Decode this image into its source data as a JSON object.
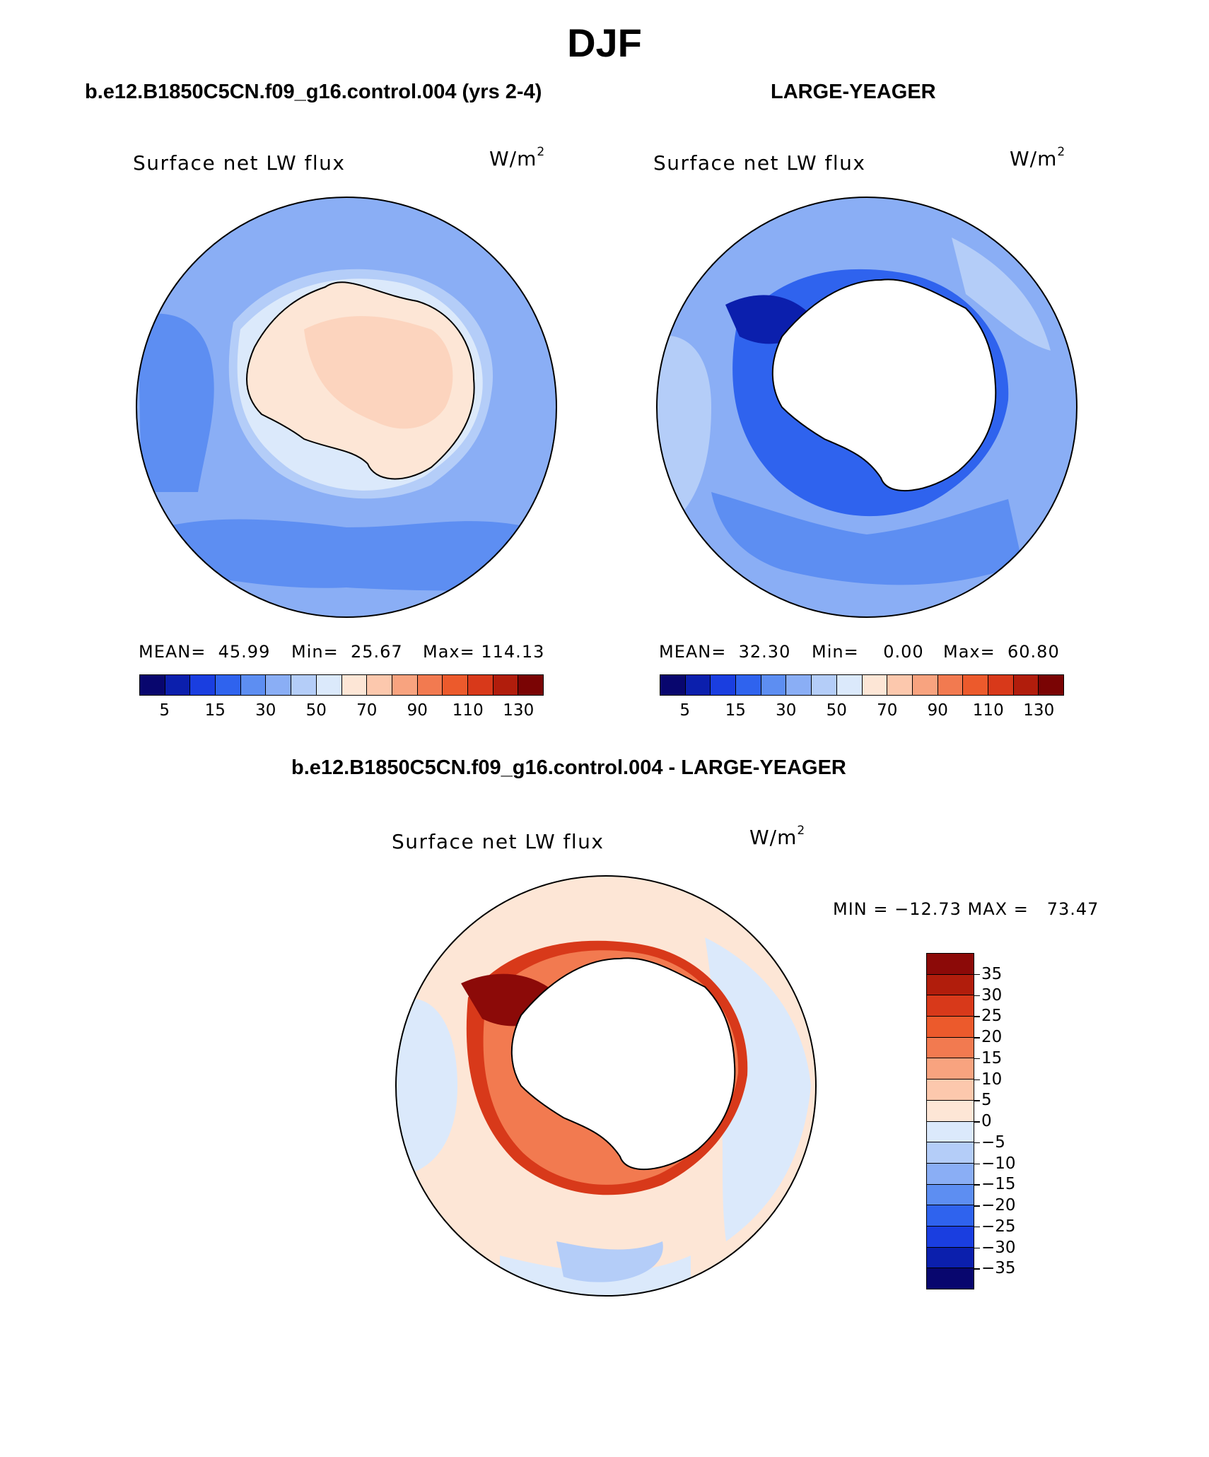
{
  "title": "DJF",
  "panels": [
    {
      "id": "control",
      "case_title": "b.e12.B1850C5CN.f09_g16.control.004 (yrs 2-4)",
      "variable": "Surface net LW flux",
      "units_base": "W/m",
      "units_exp": "2",
      "mean_label": "MEAN=",
      "mean_value": "45.99",
      "min_label": "Min=",
      "min_value": "25.67",
      "max_label": "Max=",
      "max_value": "114.13"
    },
    {
      "id": "large-yeager",
      "case_title": "LARGE-YEAGER",
      "variable": "Surface net LW flux",
      "units_base": "W/m",
      "units_exp": "2",
      "mean_label": "MEAN=",
      "mean_value": "32.30",
      "min_label": "Min=",
      "min_value": "0.00",
      "max_label": "Max=",
      "max_value": "60.80"
    }
  ],
  "horizontal_colorbar": {
    "colors": [
      "#08066e",
      "#0b1fad",
      "#1a3ee0",
      "#2f63ee",
      "#5d8ef2",
      "#8aaef5",
      "#b4cdf8",
      "#dbe9fb",
      "#fde6d6",
      "#fcc8ad",
      "#f8a37f",
      "#f27a50",
      "#ec5a2c",
      "#d8391a",
      "#b11d0c",
      "#7a0404"
    ],
    "tick_labels": [
      "5",
      "15",
      "30",
      "50",
      "70",
      "90",
      "110",
      "130"
    ]
  },
  "difference": {
    "title": "b.e12.B1850C5CN.f09_g16.control.004 - LARGE-YEAGER",
    "variable": "Surface net LW flux",
    "units_base": "W/m",
    "units_exp": "2",
    "minmax_text": "MIN = −12.73 MAX =   73.47",
    "colorbar_colors_top_to_bottom": [
      "#8c0a08",
      "#b11d0c",
      "#d8391a",
      "#ec5a2c",
      "#f27a50",
      "#f8a37f",
      "#fcc8ad",
      "#fde6d6",
      "#dbe9fb",
      "#b4cdf8",
      "#8aaef5",
      "#5d8ef2",
      "#2f63ee",
      "#1a3ee0",
      "#0b1fad",
      "#08066e"
    ],
    "colorbar_labels": [
      "35",
      "30",
      "25",
      "20",
      "15",
      "10",
      "5",
      "0",
      "−5",
      "−10",
      "−15",
      "−20",
      "−25",
      "−30",
      "−35"
    ]
  },
  "colors": {
    "ocean_control": "#8aaef5",
    "ocean_control_dark": "#5d8ef2",
    "ice_control": "#fde6d6",
    "ice_control_warm": "#fcc8ad",
    "ocean_ly": "#8aaef5",
    "ocean_ly_dark": "#2f63ee",
    "diff_bg": "#fde6d6",
    "diff_blue": "#dbe9fb",
    "diff_red": "#d8391a",
    "diff_darkred": "#8c0a08"
  }
}
